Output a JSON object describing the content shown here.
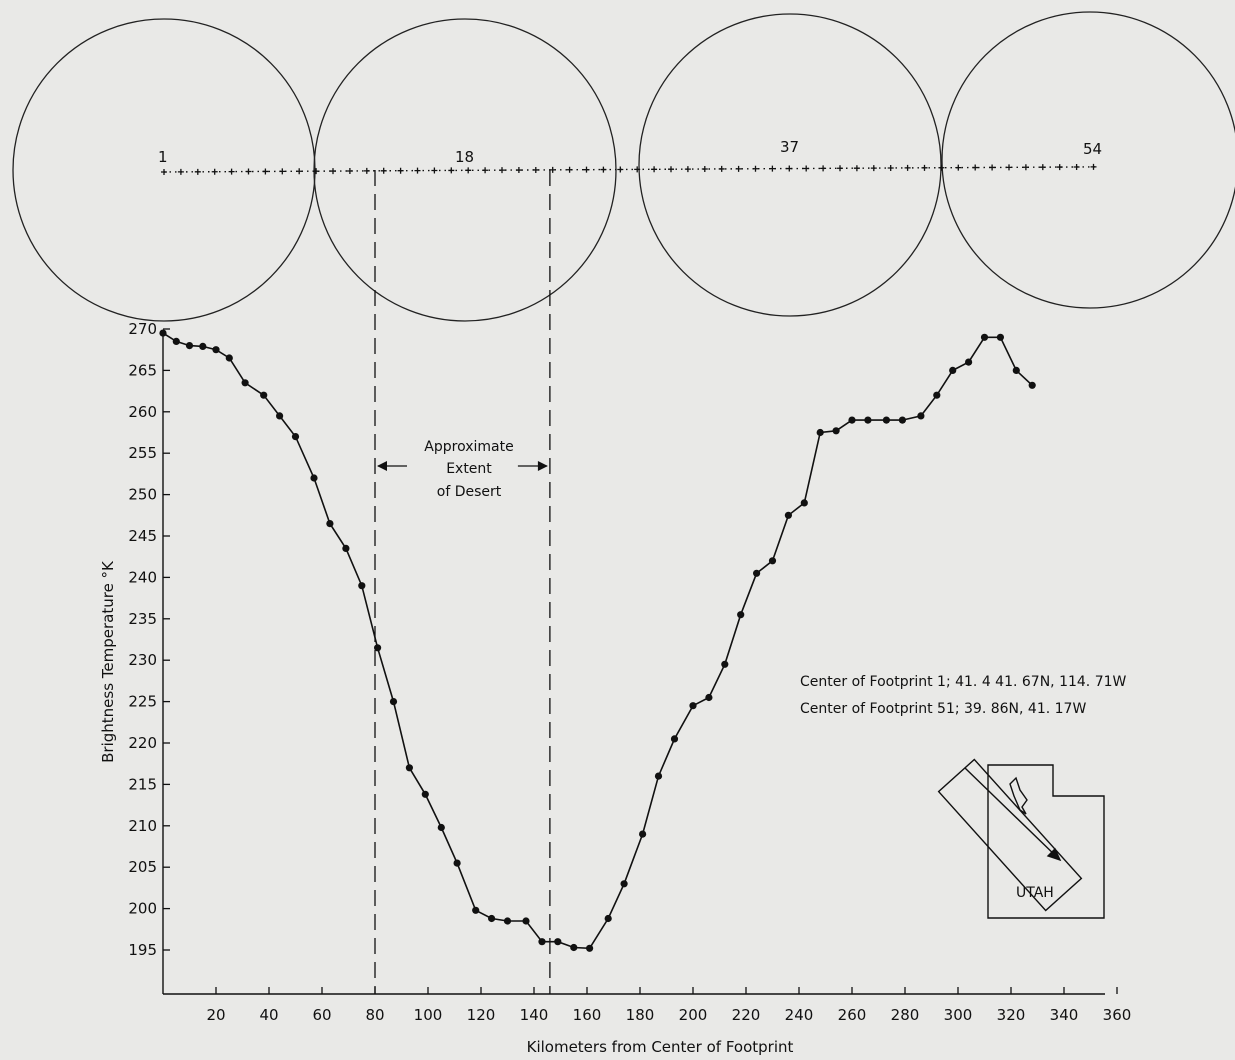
{
  "chart_data": {
    "type": "line",
    "xlabel": "Kilometers from Center of Footprint",
    "ylabel": "Brightness Temperature °K",
    "xlim": [
      0,
      360
    ],
    "ylim": [
      190,
      270
    ],
    "x_ticks": [
      20,
      40,
      60,
      80,
      100,
      120,
      140,
      160,
      180,
      200,
      220,
      240,
      260,
      280,
      300,
      320,
      340,
      360
    ],
    "y_ticks": [
      195,
      200,
      205,
      210,
      215,
      220,
      225,
      230,
      235,
      240,
      245,
      250,
      255,
      260,
      265,
      270
    ],
    "grid": false,
    "series": [
      {
        "color": "#111111",
        "points": [
          [
            0,
            269.5
          ],
          [
            5,
            268.5
          ],
          [
            10,
            268
          ],
          [
            15,
            267.9
          ],
          [
            20,
            267.5
          ],
          [
            25,
            266.5
          ],
          [
            31,
            263.5
          ],
          [
            38,
            262
          ],
          [
            44,
            259.5
          ],
          [
            50,
            257
          ],
          [
            57,
            252
          ],
          [
            63,
            246.5
          ],
          [
            69,
            243.5
          ],
          [
            75,
            239
          ],
          [
            81,
            231.5
          ],
          [
            87,
            225
          ],
          [
            93,
            217
          ],
          [
            99,
            213.8
          ],
          [
            105,
            209.8
          ],
          [
            111,
            205.5
          ],
          [
            118,
            199.8
          ],
          [
            124,
            198.8
          ],
          [
            130,
            198.5
          ],
          [
            137,
            198.5
          ],
          [
            143,
            196
          ],
          [
            149,
            196
          ],
          [
            155,
            195.3
          ],
          [
            161,
            195.2
          ],
          [
            168,
            198.8
          ],
          [
            174,
            203
          ],
          [
            181,
            209
          ],
          [
            187,
            216
          ],
          [
            193,
            220.5
          ],
          [
            200,
            224.5
          ],
          [
            206,
            225.5
          ],
          [
            212,
            229.5
          ],
          [
            218,
            235.5
          ],
          [
            224,
            240.5
          ],
          [
            230,
            242
          ],
          [
            236,
            247.5
          ],
          [
            242,
            249
          ],
          [
            248,
            257.5
          ],
          [
            254,
            257.7
          ],
          [
            260,
            259
          ],
          [
            266,
            259
          ],
          [
            273,
            259
          ],
          [
            279,
            259
          ],
          [
            286,
            259.5
          ],
          [
            292,
            262
          ],
          [
            298,
            265
          ],
          [
            304,
            266
          ],
          [
            310,
            269
          ],
          [
            316,
            269
          ],
          [
            322,
            265
          ],
          [
            328,
            263.2
          ]
        ]
      }
    ],
    "footprint_labels": [
      "1",
      "18",
      "37",
      "54"
    ],
    "region_label_lines": [
      "Approximate",
      "Extent",
      "of Desert"
    ],
    "region_x": [
      80,
      146
    ],
    "annotations": [
      "Center of Footprint 1; 41. 4  41. 67N,  114. 71W",
      "Center of Footprint 51; 39. 86N,  41. 17W"
    ],
    "map_label": "UTAH"
  }
}
